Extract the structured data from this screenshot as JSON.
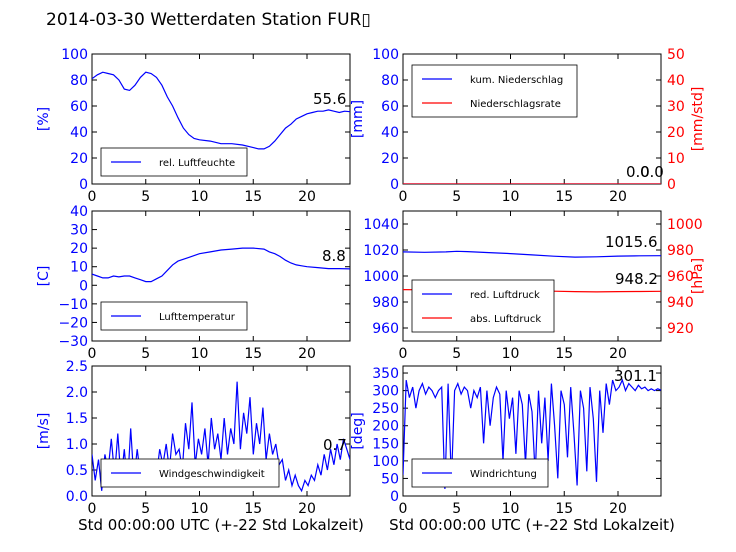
{
  "title": "2014-03-30 Wetterdaten Station FUR▯",
  "chart_data": [
    {
      "type": "line",
      "ylabel": "[%]",
      "xlim": [
        0,
        24
      ],
      "ylim": [
        0,
        100
      ],
      "xticks": [
        "0",
        "5",
        "10",
        "15",
        "20"
      ],
      "yticks": [
        "0",
        "20",
        "40",
        "60",
        "80",
        "100"
      ],
      "legend": "bottom-left",
      "annotation": "55.6",
      "series": [
        {
          "name": "rel. Luftfeuchte",
          "color": "#0000ff",
          "x": [
            0,
            0.5,
            1,
            1.5,
            2,
            2.5,
            3,
            3.5,
            4,
            4.5,
            5,
            5.5,
            6,
            6.5,
            7,
            7.5,
            8,
            8.5,
            9,
            9.5,
            10,
            11,
            12,
            13,
            14,
            15,
            15.5,
            16,
            16.5,
            17,
            17.5,
            18,
            18.5,
            19,
            19.5,
            20,
            20.5,
            21,
            21.5,
            22,
            22.5,
            23,
            23.5,
            24
          ],
          "y": [
            81,
            84,
            86,
            85,
            84,
            80,
            73,
            72,
            76,
            82,
            86,
            85,
            82,
            76,
            67,
            60,
            51,
            43,
            38,
            35,
            34,
            33,
            31,
            31,
            30,
            28,
            27,
            27,
            29,
            33,
            38,
            43,
            46,
            50,
            52,
            54,
            55,
            56,
            56,
            57,
            56,
            55,
            56,
            55.6
          ]
        }
      ]
    },
    {
      "type": "line",
      "ylabel": "[mm]",
      "ylabel_right": "[mm/std]",
      "xlim": [
        0,
        24
      ],
      "ylim": [
        0,
        100
      ],
      "ylim_right": [
        0,
        50
      ],
      "xticks": [
        "0",
        "5",
        "10",
        "15",
        "20"
      ],
      "yticks": [
        "0",
        "20",
        "40",
        "60",
        "80",
        "100"
      ],
      "yticks_right": [
        "0",
        "10",
        "20",
        "30",
        "40",
        "50"
      ],
      "legend": "top-left",
      "annotation": "0.0",
      "annotation2": "0.0",
      "series": [
        {
          "name": "kum. Niederschlag",
          "color": "#0000ff",
          "x": [
            0,
            24
          ],
          "y": [
            0,
            0
          ]
        },
        {
          "name": "Niederschlagsrate",
          "color": "#ff0000",
          "x": [
            0,
            24
          ],
          "y": [
            0,
            0
          ]
        }
      ]
    },
    {
      "type": "line",
      "ylabel": "[C]",
      "xlim": [
        0,
        24
      ],
      "ylim": [
        -30,
        40
      ],
      "xticks": [
        "0",
        "5",
        "10",
        "15",
        "20"
      ],
      "yticks": [
        "−30",
        "−20",
        "−10",
        "0",
        "10",
        "20",
        "30",
        "40"
      ],
      "legend": "bottom-left",
      "annotation": "8.8",
      "series": [
        {
          "name": "Lufttemperatur",
          "color": "#0000ff",
          "x": [
            0,
            0.5,
            1,
            1.5,
            2,
            2.5,
            3,
            3.5,
            4,
            4.5,
            5,
            5.5,
            6,
            6.5,
            7,
            7.5,
            8,
            9,
            10,
            11,
            12,
            13,
            14,
            15,
            16,
            16.5,
            17,
            17.5,
            18,
            18.5,
            19,
            19.5,
            20,
            21,
            22,
            23,
            24
          ],
          "y": [
            6,
            5,
            4,
            4,
            5,
            4.5,
            5,
            5,
            4,
            3,
            2,
            2,
            3.5,
            5,
            8,
            11,
            13,
            15,
            17,
            18,
            19,
            19.5,
            20,
            20,
            19.5,
            18,
            17,
            15.5,
            13.5,
            12,
            11,
            10.5,
            10,
            9.5,
            9,
            9,
            8.8
          ]
        }
      ]
    },
    {
      "type": "line",
      "ylabel_right": "[hPa]",
      "xlim": [
        0,
        24
      ],
      "ylim": [
        950,
        1050
      ],
      "ylim_right": [
        910,
        1010
      ],
      "xticks": [
        "0",
        "5",
        "10",
        "15",
        "20"
      ],
      "yticks": [
        "960",
        "980",
        "1000",
        "1020",
        "1040"
      ],
      "yticks_right": [
        "920",
        "940",
        "960",
        "980",
        "1000"
      ],
      "legend": "bottom-left",
      "annotation": "1015.6",
      "annotation2": "948.2",
      "series": [
        {
          "name": "red. Luftdruck",
          "color": "#0000ff",
          "x": [
            0,
            2,
            4,
            5,
            6,
            8,
            10,
            12,
            14,
            16,
            18,
            20,
            22,
            24
          ],
          "y": [
            1018.5,
            1018.2,
            1018.5,
            1019,
            1018.8,
            1018,
            1017.2,
            1016.2,
            1015.2,
            1014.5,
            1014.8,
            1015.3,
            1015.5,
            1015.6
          ]
        },
        {
          "name": "abs. Luftdruck",
          "color": "#ff0000",
          "x": [
            0,
            2,
            4,
            6,
            8,
            10,
            12,
            14,
            16,
            18,
            20,
            22,
            24
          ],
          "y": [
            949.5,
            949.4,
            949.6,
            949.8,
            949.5,
            949.2,
            948.8,
            948.3,
            948,
            947.8,
            948,
            948.1,
            948.2
          ]
        }
      ]
    },
    {
      "type": "line",
      "ylabel": "[m/s]",
      "xlabel": "Std 00:00:00 UTC (+-22 Std Lokalzeit)",
      "xlim": [
        0,
        24
      ],
      "ylim": [
        0,
        2.5
      ],
      "xticks": [
        "0",
        "5",
        "10",
        "15",
        "20"
      ],
      "yticks": [
        "0.0",
        "0.5",
        "1.0",
        "1.5",
        "2.0",
        "2.5"
      ],
      "legend": "bottom-left",
      "annotation": "0.7",
      "series": [
        {
          "name": "Windgeschwindigkeit",
          "color": "#0000ff",
          "x": [
            0,
            0.3,
            0.6,
            0.9,
            1.2,
            1.5,
            1.8,
            2.1,
            2.4,
            2.7,
            3,
            3.3,
            3.6,
            3.9,
            4.2,
            4.5,
            4.8,
            5.1,
            5.4,
            5.7,
            6,
            6.3,
            6.6,
            6.9,
            7.2,
            7.5,
            7.8,
            8.1,
            8.4,
            8.7,
            9,
            9.3,
            9.6,
            9.9,
            10.2,
            10.5,
            10.8,
            11.1,
            11.4,
            11.7,
            12,
            12.3,
            12.6,
            12.9,
            13.2,
            13.5,
            13.8,
            14.1,
            14.4,
            14.7,
            15,
            15.3,
            15.6,
            15.9,
            16.2,
            16.5,
            16.8,
            17.1,
            17.4,
            17.7,
            18,
            18.3,
            18.6,
            18.9,
            19.2,
            19.5,
            19.8,
            20.1,
            20.4,
            20.7,
            21,
            21.3,
            21.6,
            21.9,
            22.2,
            22.5,
            22.8,
            23.1,
            23.4,
            23.7,
            24
          ],
          "y": [
            0.8,
            0.3,
            0.7,
            0.1,
            0.8,
            0.5,
            1.1,
            0.4,
            1.2,
            0.3,
            0.9,
            0.2,
            1.3,
            0.3,
            0.9,
            0.4,
            0.2,
            0.5,
            0.3,
            0.6,
            0.4,
            0.9,
            0.6,
            1.0,
            0.5,
            1.2,
            0.8,
            0.9,
            0.5,
            1.4,
            0.9,
            1.8,
            0.6,
            1.1,
            0.8,
            1.3,
            0.6,
            1.5,
            0.9,
            1.2,
            0.7,
            1.5,
            0.8,
            1.3,
            1.0,
            2.2,
            0.9,
            1.6,
            1.2,
            1.9,
            0.8,
            1.4,
            1.0,
            1.7,
            0.7,
            1.2,
            0.8,
            1.0,
            0.6,
            0.7,
            0.3,
            0.5,
            0.2,
            0.4,
            0.2,
            0.1,
            0.3,
            0.2,
            0.4,
            0.3,
            0.6,
            0.4,
            0.8,
            0.5,
            0.9,
            0.6,
            1.0,
            0.7,
            1.1,
            0.9,
            0.7
          ]
        }
      ]
    },
    {
      "type": "line",
      "ylabel": "[deg]",
      "xlabel": "Std 00:00:00 UTC (+-22 Std Lokalzeit)",
      "xlim": [
        0,
        24
      ],
      "ylim": [
        0,
        370
      ],
      "xticks": [
        "0",
        "5",
        "10",
        "15",
        "20"
      ],
      "yticks": [
        "0",
        "50",
        "100",
        "150",
        "200",
        "250",
        "300",
        "350"
      ],
      "legend": "bottom-left",
      "annotation": "301.1",
      "series": [
        {
          "name": "Windrichtung",
          "color": "#0000ff",
          "x": [
            0,
            0.3,
            0.6,
            0.9,
            1.2,
            1.5,
            1.8,
            2.1,
            2.4,
            2.7,
            3,
            3.3,
            3.6,
            3.9,
            4.2,
            4.5,
            4.8,
            5.1,
            5.4,
            5.7,
            6,
            6.3,
            6.6,
            6.9,
            7.2,
            7.5,
            7.8,
            8.1,
            8.4,
            8.7,
            9,
            9.3,
            9.6,
            9.9,
            10.2,
            10.5,
            10.8,
            11.1,
            11.4,
            11.7,
            12,
            12.3,
            12.6,
            12.9,
            13.2,
            13.5,
            13.8,
            14.1,
            14.4,
            14.7,
            15,
            15.3,
            15.6,
            15.9,
            16.2,
            16.5,
            16.8,
            17.1,
            17.4,
            17.7,
            18,
            18.3,
            18.6,
            18.9,
            19.2,
            19.5,
            19.8,
            20.1,
            20.4,
            20.7,
            21,
            21.3,
            21.6,
            21.9,
            22.2,
            22.5,
            22.8,
            23.1,
            23.4,
            23.7,
            24
          ],
          "y": [
            60,
            330,
            280,
            310,
            250,
            300,
            320,
            290,
            310,
            300,
            280,
            300,
            310,
            20,
            320,
            40,
            300,
            320,
            290,
            310,
            300,
            250,
            300,
            280,
            310,
            150,
            300,
            200,
            280,
            310,
            290,
            100,
            300,
            220,
            280,
            120,
            300,
            260,
            90,
            290,
            240,
            60,
            300,
            150,
            280,
            100,
            320,
            200,
            50,
            300,
            260,
            110,
            310,
            180,
            30,
            300,
            250,
            70,
            310,
            220,
            40,
            300,
            180,
            320,
            260,
            330,
            300,
            310,
            330,
            300,
            320,
            310,
            300,
            315,
            305,
            310,
            300,
            305,
            300,
            305,
            301
          ]
        }
      ]
    }
  ]
}
